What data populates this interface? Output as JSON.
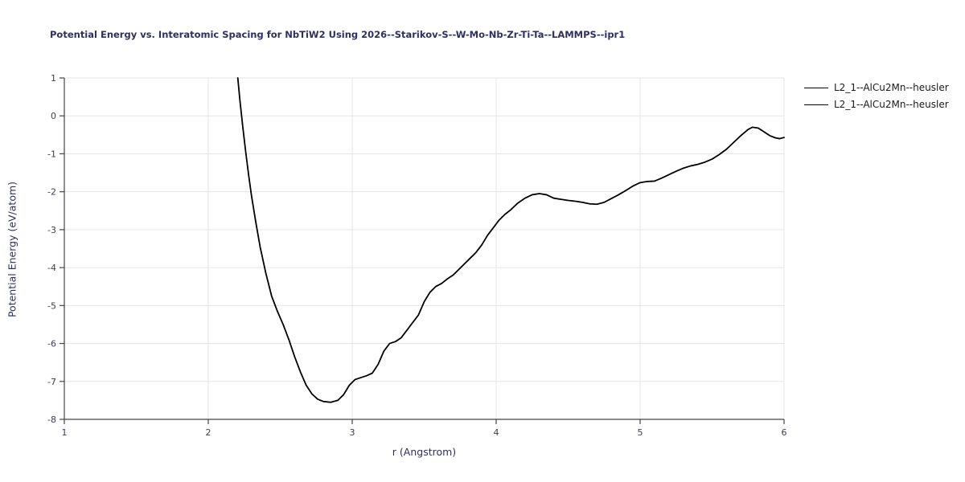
{
  "chart_data": {
    "type": "line",
    "title": "Potential Energy vs. Interatomic Spacing for NbTiW2 Using 2026--Starikov-S--W-Mo-Nb-Zr-Ti-Ta--LAMMPS--ipr1",
    "xlabel": "r (Angstrom)",
    "ylabel": "Potential Energy (eV/atom)",
    "xlim": [
      1,
      6
    ],
    "ylim": [
      -8,
      1
    ],
    "xticks": [
      1,
      2,
      3,
      4,
      5,
      6
    ],
    "yticks": [
      -8,
      -7,
      -6,
      -5,
      -4,
      -3,
      -2,
      -1,
      0,
      1
    ],
    "grid": true,
    "legend_position": "top-right-outside",
    "legend": [
      {
        "label": "L2_1--AlCu2Mn--heusler",
        "color": "#000000"
      },
      {
        "label": "L2_1--AlCu2Mn--heusler",
        "color": "#000000"
      }
    ],
    "colors": {
      "title_text": "#2f2f63",
      "axis_label_text": "#2f2f63",
      "tick_text": "#3c3c55",
      "grid_line": "#e5e5e5",
      "axis_line": "#444444",
      "curve": "#000000",
      "background": "#ffffff"
    },
    "series": [
      {
        "name": "L2_1--AlCu2Mn--heusler",
        "color": "#000000",
        "width": 1.8,
        "points": [
          [
            2.205,
            1.0
          ],
          [
            2.22,
            0.4
          ],
          [
            2.24,
            -0.3
          ],
          [
            2.26,
            -0.95
          ],
          [
            2.28,
            -1.55
          ],
          [
            2.3,
            -2.1
          ],
          [
            2.33,
            -2.8
          ],
          [
            2.36,
            -3.45
          ],
          [
            2.4,
            -4.15
          ],
          [
            2.44,
            -4.75
          ],
          [
            2.48,
            -5.15
          ],
          [
            2.52,
            -5.5
          ],
          [
            2.56,
            -5.9
          ],
          [
            2.6,
            -6.35
          ],
          [
            2.64,
            -6.75
          ],
          [
            2.68,
            -7.1
          ],
          [
            2.72,
            -7.33
          ],
          [
            2.76,
            -7.47
          ],
          [
            2.8,
            -7.53
          ],
          [
            2.85,
            -7.55
          ],
          [
            2.9,
            -7.5
          ],
          [
            2.94,
            -7.35
          ],
          [
            2.98,
            -7.1
          ],
          [
            3.02,
            -6.95
          ],
          [
            3.06,
            -6.9
          ],
          [
            3.1,
            -6.85
          ],
          [
            3.14,
            -6.78
          ],
          [
            3.18,
            -6.55
          ],
          [
            3.22,
            -6.2
          ],
          [
            3.26,
            -6.0
          ],
          [
            3.3,
            -5.95
          ],
          [
            3.34,
            -5.85
          ],
          [
            3.38,
            -5.65
          ],
          [
            3.42,
            -5.45
          ],
          [
            3.46,
            -5.25
          ],
          [
            3.5,
            -4.9
          ],
          [
            3.54,
            -4.65
          ],
          [
            3.58,
            -4.5
          ],
          [
            3.62,
            -4.42
          ],
          [
            3.66,
            -4.3
          ],
          [
            3.7,
            -4.2
          ],
          [
            3.74,
            -4.05
          ],
          [
            3.78,
            -3.9
          ],
          [
            3.82,
            -3.75
          ],
          [
            3.86,
            -3.6
          ],
          [
            3.9,
            -3.4
          ],
          [
            3.94,
            -3.15
          ],
          [
            3.98,
            -2.95
          ],
          [
            4.02,
            -2.75
          ],
          [
            4.06,
            -2.6
          ],
          [
            4.1,
            -2.48
          ],
          [
            4.15,
            -2.3
          ],
          [
            4.2,
            -2.17
          ],
          [
            4.25,
            -2.08
          ],
          [
            4.3,
            -2.05
          ],
          [
            4.35,
            -2.08
          ],
          [
            4.4,
            -2.17
          ],
          [
            4.45,
            -2.2
          ],
          [
            4.5,
            -2.23
          ],
          [
            4.55,
            -2.25
          ],
          [
            4.6,
            -2.28
          ],
          [
            4.65,
            -2.32
          ],
          [
            4.7,
            -2.33
          ],
          [
            4.75,
            -2.28
          ],
          [
            4.8,
            -2.18
          ],
          [
            4.85,
            -2.08
          ],
          [
            4.9,
            -1.97
          ],
          [
            4.95,
            -1.85
          ],
          [
            5.0,
            -1.76
          ],
          [
            5.05,
            -1.73
          ],
          [
            5.1,
            -1.72
          ],
          [
            5.15,
            -1.64
          ],
          [
            5.2,
            -1.55
          ],
          [
            5.25,
            -1.46
          ],
          [
            5.3,
            -1.38
          ],
          [
            5.35,
            -1.32
          ],
          [
            5.4,
            -1.28
          ],
          [
            5.45,
            -1.22
          ],
          [
            5.5,
            -1.14
          ],
          [
            5.55,
            -1.02
          ],
          [
            5.6,
            -0.88
          ],
          [
            5.65,
            -0.7
          ],
          [
            5.7,
            -0.52
          ],
          [
            5.75,
            -0.36
          ],
          [
            5.78,
            -0.3
          ],
          [
            5.82,
            -0.32
          ],
          [
            5.86,
            -0.42
          ],
          [
            5.9,
            -0.52
          ],
          [
            5.94,
            -0.58
          ],
          [
            5.97,
            -0.6
          ],
          [
            6.0,
            -0.57
          ]
        ]
      }
    ]
  }
}
